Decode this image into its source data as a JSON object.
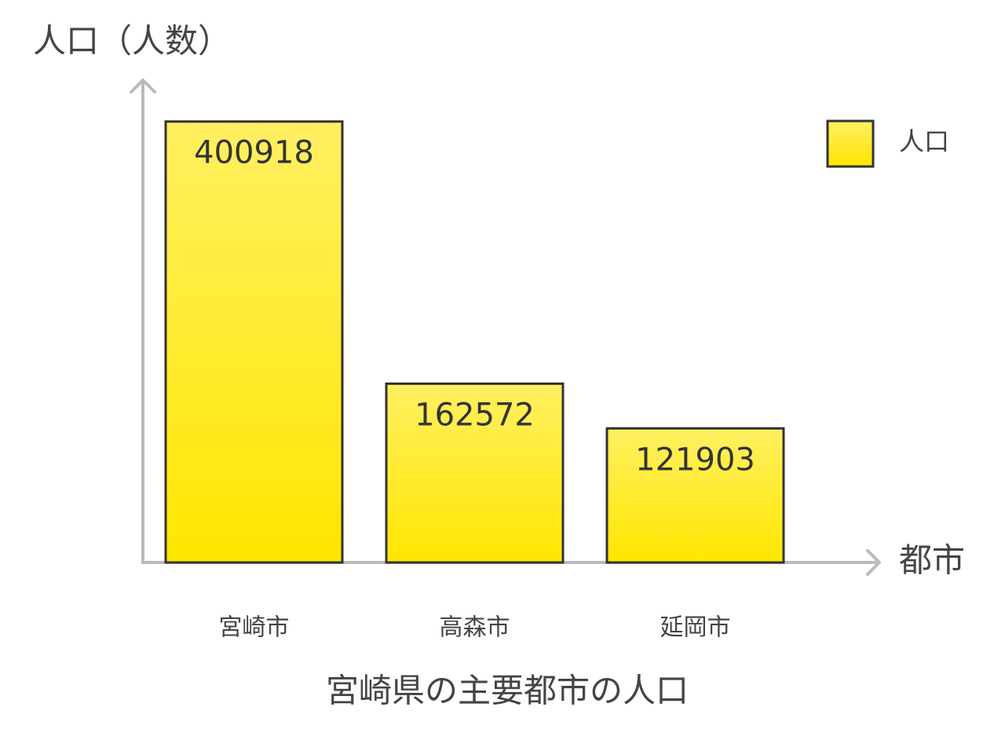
{
  "chart_data": {
    "type": "bar",
    "title": "宮崎県の主要都市の人口",
    "y_label": "人口（人数）",
    "x_label": "都市",
    "categories": [
      "宮崎市",
      "高森市",
      "延岡市"
    ],
    "series": [
      {
        "name": "人口",
        "color": "#ffe600",
        "values": [
          400918,
          162572,
          121903
        ]
      }
    ],
    "ylim": [
      0,
      440000
    ],
    "legend": "top-right"
  }
}
